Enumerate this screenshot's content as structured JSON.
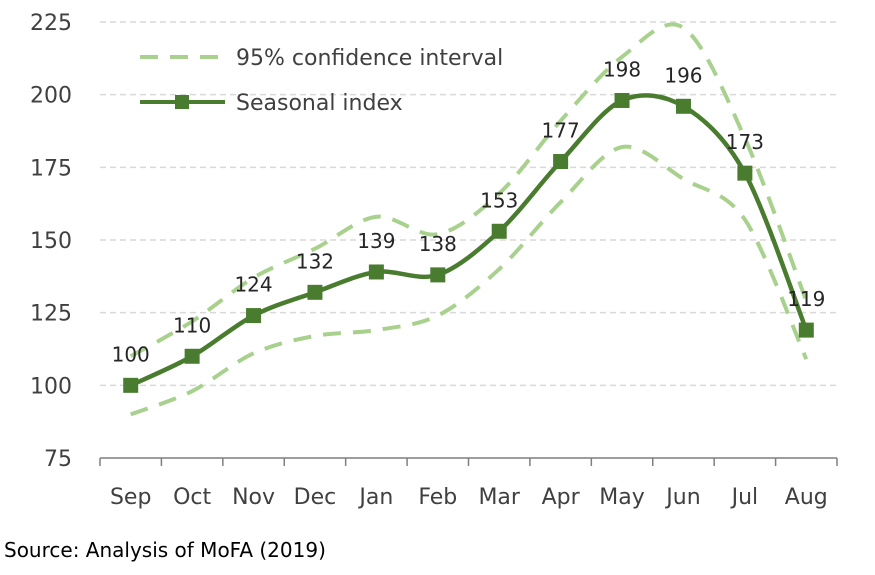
{
  "chart_data": {
    "type": "line",
    "categories": [
      "Sep",
      "Oct",
      "Nov",
      "Dec",
      "Jan",
      "Feb",
      "Mar",
      "Apr",
      "May",
      "Jun",
      "Jul",
      "Aug"
    ],
    "series": [
      {
        "name": "Seasonal index",
        "values": [
          100,
          110,
          124,
          132,
          139,
          138,
          153,
          177,
          198,
          196,
          173,
          119
        ],
        "color": "#4a7c2f",
        "style": "solid",
        "marker": "square"
      },
      {
        "name": "95% confidence interval",
        "role": "upper",
        "values": [
          110,
          122,
          137,
          147,
          158,
          152,
          166,
          191,
          213,
          223,
          185,
          129
        ],
        "color": "#a9d18e",
        "style": "dashed"
      },
      {
        "name": "95% confidence interval",
        "role": "lower",
        "values": [
          90,
          98,
          111,
          117,
          119,
          124,
          140,
          163,
          182,
          171,
          157,
          109
        ],
        "color": "#a9d18e",
        "style": "dashed"
      }
    ],
    "data_labels": [
      "100",
      "110",
      "124",
      "132",
      "139",
      "138",
      "153",
      "177",
      "198",
      "196",
      "173",
      "119"
    ],
    "yticks": [
      "75",
      "100",
      "125",
      "150",
      "175",
      "200",
      "225"
    ],
    "ylim": [
      75,
      225
    ],
    "grid": "horizontal dashed",
    "legend": {
      "position": "top-left",
      "items": [
        {
          "label": "95% confidence interval",
          "style": "dashed",
          "color": "#a9d18e"
        },
        {
          "label": "Seasonal index",
          "style": "solid-square",
          "color": "#4a7c2f"
        }
      ]
    }
  },
  "source": "Source: Analysis of MoFA (2019)"
}
